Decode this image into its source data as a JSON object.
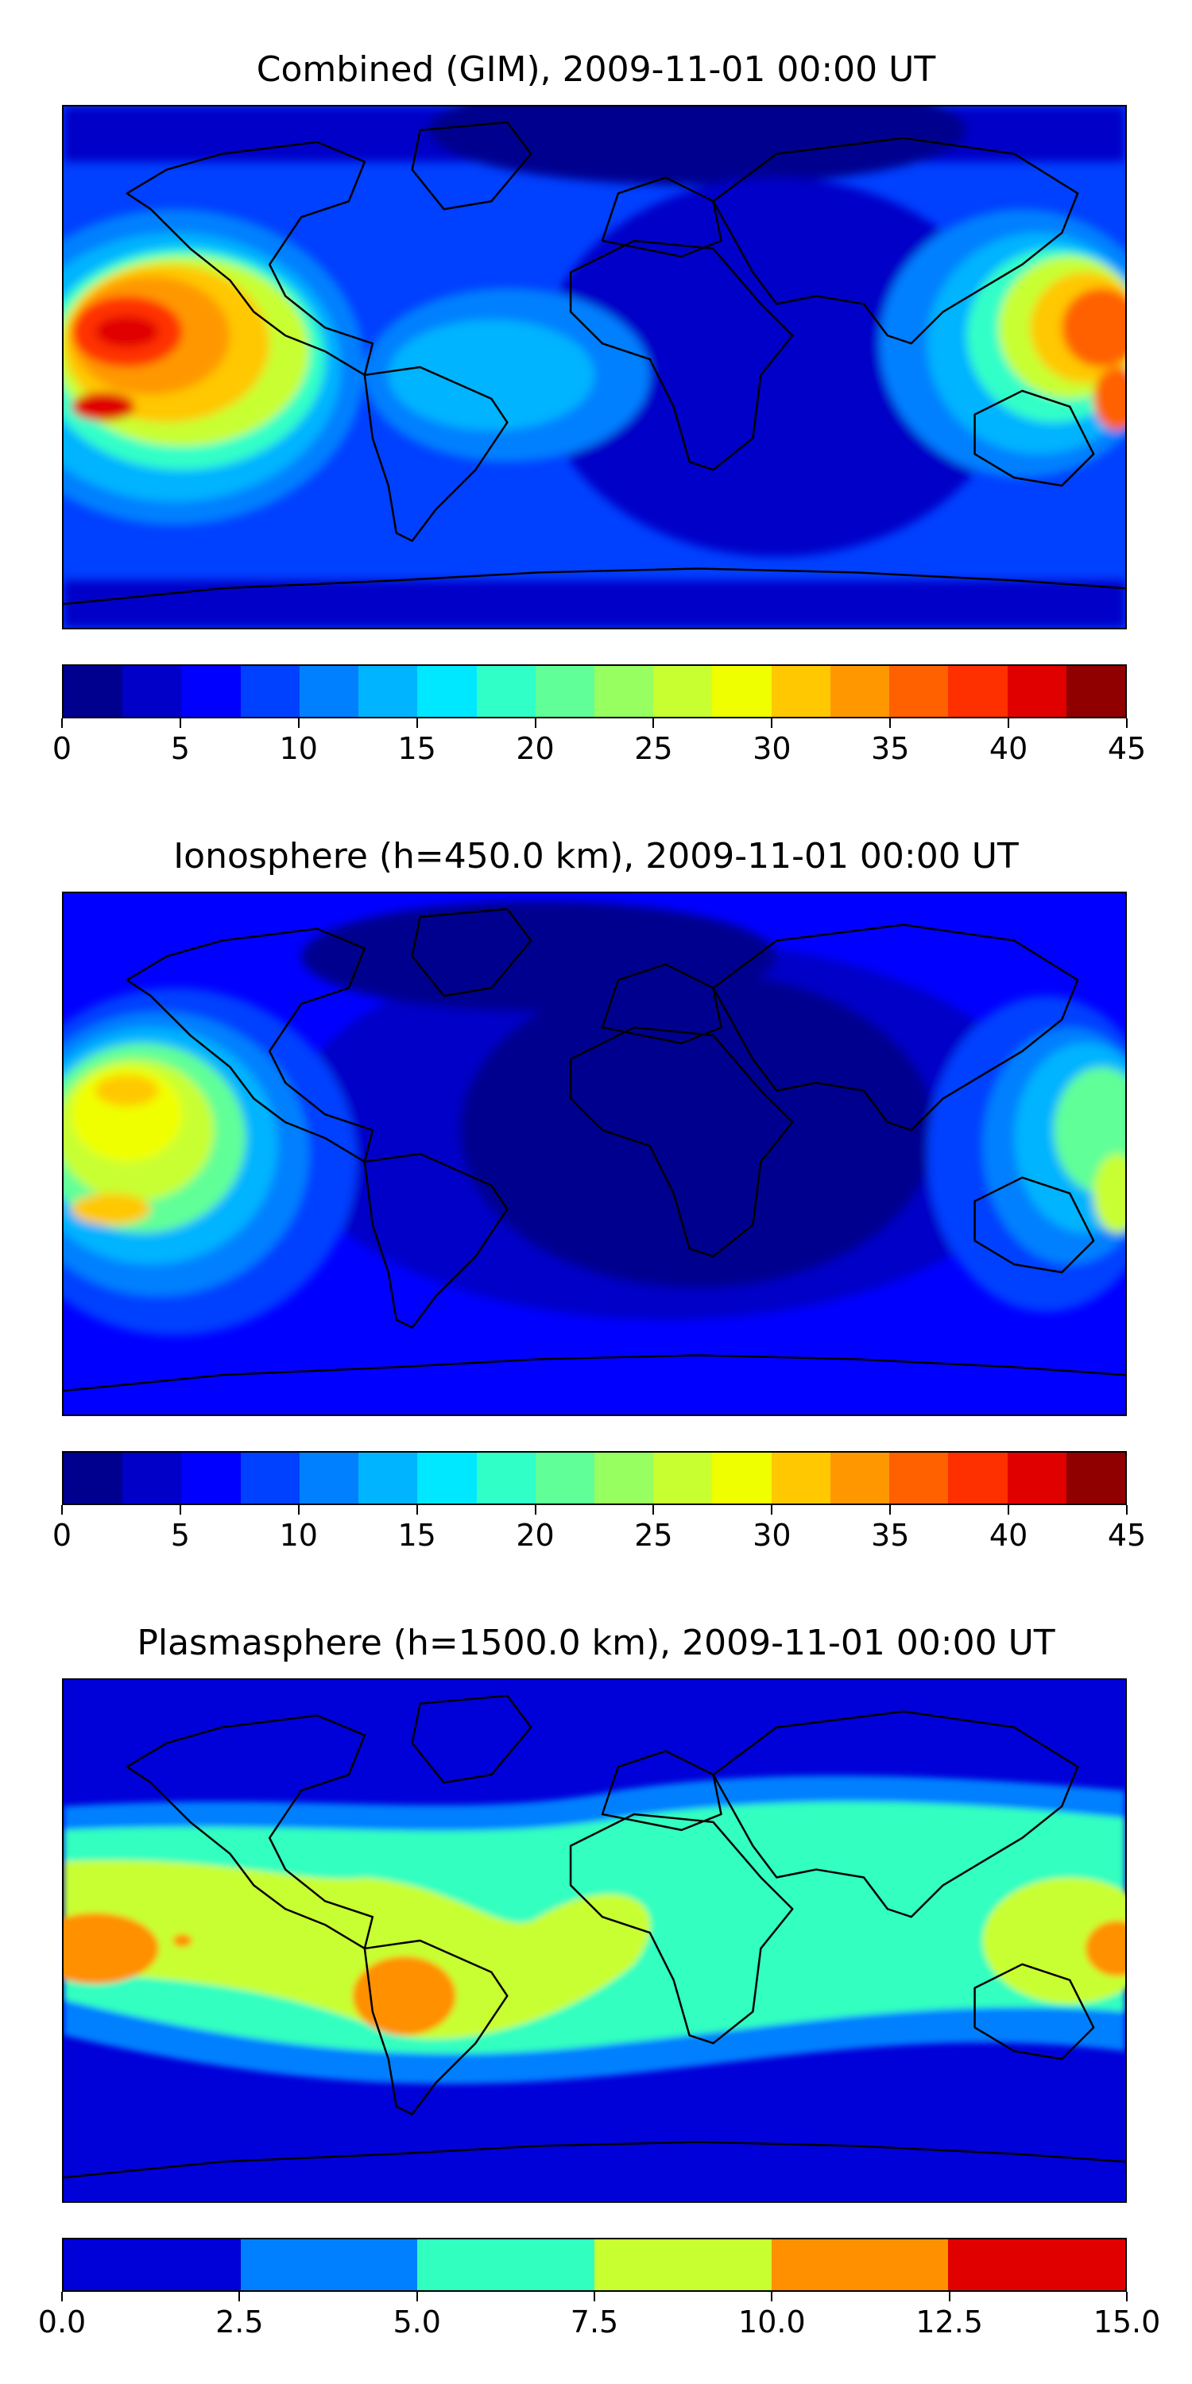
{
  "panels": [
    {
      "title": "Combined (GIM), 2009-11-01 00:00 UT",
      "colorbar": {
        "ticks": [
          "0",
          "5",
          "10",
          "15",
          "20",
          "25",
          "30",
          "35",
          "40",
          "45"
        ],
        "colors": [
          "#00008f",
          "#0000c8",
          "#0000ff",
          "#0040ff",
          "#0080ff",
          "#00b4ff",
          "#00e8ff",
          "#30ffc8",
          "#60ff98",
          "#98ff60",
          "#c8ff30",
          "#f0ff00",
          "#ffc800",
          "#ff9800",
          "#ff6000",
          "#ff3000",
          "#e00000",
          "#900000"
        ]
      }
    },
    {
      "title": "Ionosphere  (h=450.0 km), 2009-11-01 00:00 UT",
      "colorbar": {
        "ticks": [
          "0",
          "5",
          "10",
          "15",
          "20",
          "25",
          "30",
          "35",
          "40",
          "45"
        ],
        "colors": [
          "#00008f",
          "#0000c8",
          "#0000ff",
          "#0040ff",
          "#0080ff",
          "#00b4ff",
          "#00e8ff",
          "#30ffc8",
          "#60ff98",
          "#98ff60",
          "#c8ff30",
          "#f0ff00",
          "#ffc800",
          "#ff9800",
          "#ff6000",
          "#ff3000",
          "#e00000",
          "#900000"
        ]
      }
    },
    {
      "title": "Plasmasphere (h=1500.0 km), 2009-11-01 00:00 UT",
      "colorbar": {
        "ticks": [
          "0.0",
          "2.5",
          "5.0",
          "7.5",
          "10.0",
          "12.5",
          "15.0"
        ],
        "colors": [
          "#0000d8",
          "#0080ff",
          "#30ffc0",
          "#c8ff30",
          "#ff9000",
          "#e00000"
        ]
      }
    }
  ]
}
